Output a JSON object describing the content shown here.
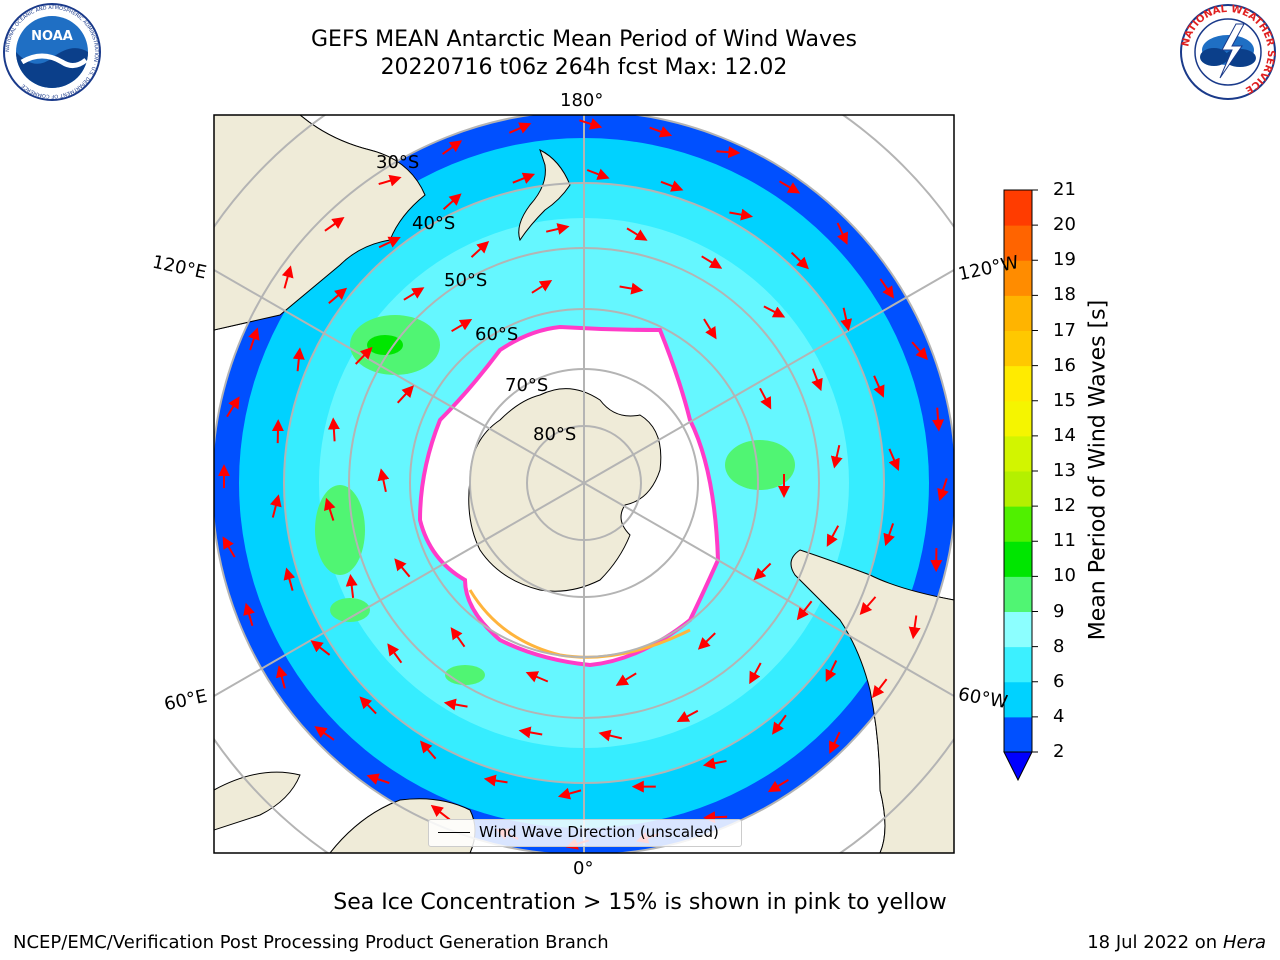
{
  "header": {
    "title_line1": "GEFS MEAN Antarctic Mean Period of Wind Waves",
    "title_line2": "20220716 t06z 264h fcst   Max: 12.02"
  },
  "logos": {
    "noaa_text": "NOAA",
    "noaa_ring_text": "NATIONAL OCEANIC AND ATMOSPHERIC ADMINISTRATION · U.S. DEPARTMENT OF COMMERCE",
    "nws_ring_text": "NATIONAL WEATHER SERVICE"
  },
  "map": {
    "projection": "south-polar-stereographic",
    "lon_labels": {
      "top": "180°",
      "bottom": "0°",
      "left_upper": "120°E",
      "left_lower": "60°E",
      "right_upper": "120°W",
      "right_lower": "60°W"
    },
    "lat_labels": [
      "30°S",
      "40°S",
      "50°S",
      "60°S",
      "70°S",
      "80°S"
    ],
    "legend_label": "Wind Wave Direction (unscaled)",
    "colors": {
      "land": "#efebd8",
      "ice": "#ffffff",
      "ice_edge_pink": "#ff3cc8",
      "ice_edge_yellow": "#ffb43c",
      "arrow": "#ff0000",
      "grid": "#b4b4b4"
    }
  },
  "colorbar": {
    "title": "Mean Period of Wind Waves [s]",
    "ticks": [
      "2",
      "4",
      "6",
      "8",
      "9",
      "10",
      "11",
      "12",
      "13",
      "14",
      "15",
      "16",
      "17",
      "18",
      "19",
      "20",
      "21"
    ],
    "colors": [
      "#0050ff",
      "#00d2ff",
      "#3cf0ff",
      "#8cffff",
      "#50f573",
      "#00e600",
      "#50f000",
      "#b4f000",
      "#d2f500",
      "#f5f500",
      "#ffeb00",
      "#ffc800",
      "#ffb400",
      "#ff8c00",
      "#ff6400",
      "#ff3c00",
      "#ff0000"
    ],
    "under_color": "#0000ff"
  },
  "footer": {
    "note": "Sea Ice Concentration > 15% is shown in pink to yellow",
    "credit": "NCEP/EMC/Verification Post Processing Product Generation Branch",
    "date": "18 Jul 2022 on ",
    "machine": "Hera"
  }
}
